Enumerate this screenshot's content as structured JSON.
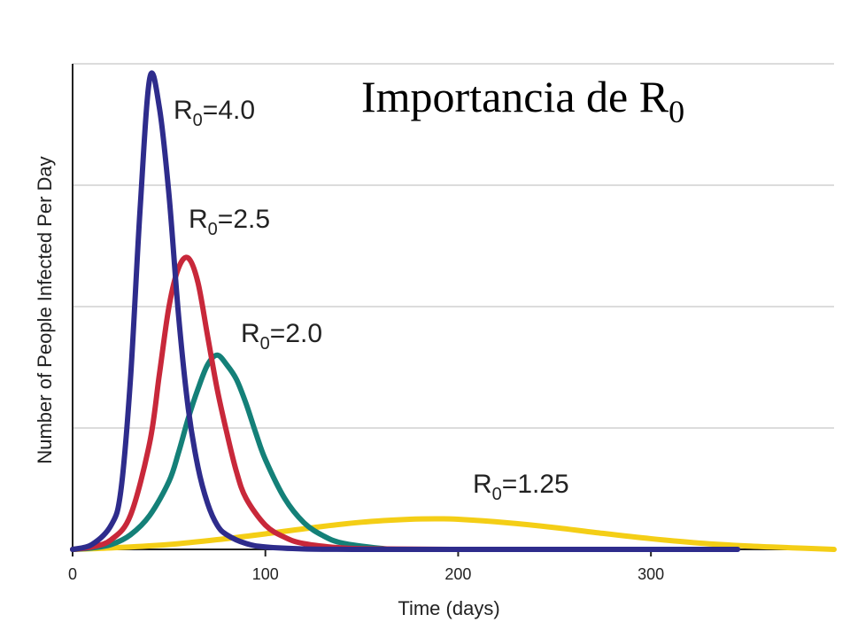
{
  "chart_data": {
    "type": "line",
    "title": "Importancia de R",
    "title_subscript": "0",
    "xlabel": "Time (days)",
    "ylabel": "Number of People Infected Per Day",
    "xlim": [
      0,
      395
    ],
    "ylim": [
      0,
      100
    ],
    "x_ticks": [
      0,
      100,
      200,
      300
    ],
    "y_gridlines": [
      25,
      50,
      75,
      100
    ],
    "grid": true,
    "series": [
      {
        "name": "R",
        "name_subscript": "0",
        "name_suffix": "=4.0",
        "color": "#2E2C8C",
        "x": [
          0,
          10,
          20,
          25,
          30,
          35,
          40,
          45,
          50,
          55,
          60,
          65,
          70,
          75,
          80,
          90,
          100,
          120,
          150,
          200,
          300,
          345
        ],
        "y": [
          0,
          1,
          5,
          12,
          35,
          70,
          97,
          91,
          73,
          48,
          29,
          17,
          9.5,
          5,
          3,
          1.2,
          0.5,
          0.1,
          0,
          0,
          0,
          0
        ]
      },
      {
        "name": "R",
        "name_subscript": "0",
        "name_suffix": "=2.5",
        "color": "#C8283A",
        "x": [
          0,
          10,
          20,
          30,
          40,
          45,
          50,
          55,
          60,
          65,
          70,
          75,
          80,
          85,
          90,
          100,
          110,
          120,
          140,
          160,
          200,
          210
        ],
        "y": [
          0,
          0.5,
          2,
          7,
          22,
          36,
          50,
          58,
          60,
          55,
          44,
          33,
          24,
          16,
          10.5,
          5,
          2.5,
          1.2,
          0.3,
          0.1,
          0,
          0
        ]
      },
      {
        "name": "R",
        "name_subscript": "0",
        "name_suffix": "=2.0",
        "color": "#148078",
        "x": [
          0,
          10,
          20,
          30,
          40,
          50,
          55,
          60,
          65,
          70,
          75,
          80,
          85,
          90,
          95,
          100,
          110,
          120,
          130,
          140,
          160,
          170,
          200
        ],
        "y": [
          0,
          0.3,
          1,
          3,
          7,
          14,
          20,
          27,
          33,
          38,
          40,
          38,
          35,
          30,
          24,
          18.5,
          10.5,
          5.5,
          2.8,
          1.3,
          0.2,
          0,
          0
        ]
      },
      {
        "name": "R",
        "name_subscript": "0",
        "name_suffix": "=1.25",
        "color": "#F4CE16",
        "x": [
          0,
          25,
          50,
          75,
          100,
          125,
          150,
          175,
          190,
          200,
          225,
          250,
          275,
          300,
          325,
          350,
          375,
          395
        ],
        "y": [
          0,
          0.4,
          1,
          2,
          3.2,
          4.5,
          5.6,
          6.2,
          6.3,
          6.2,
          5.5,
          4.5,
          3.3,
          2.2,
          1.3,
          0.7,
          0.3,
          0
        ]
      }
    ]
  }
}
